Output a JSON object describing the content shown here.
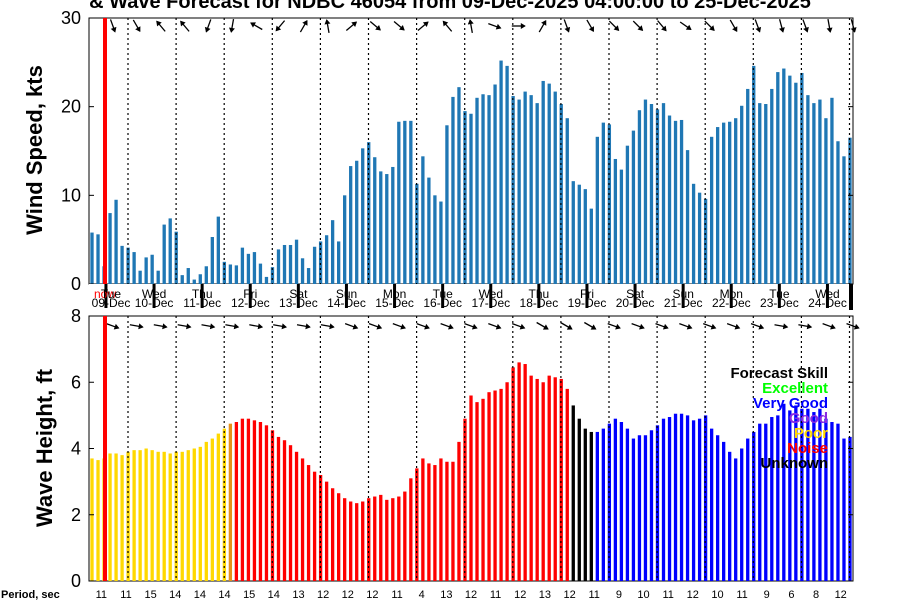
{
  "title": "& Wave Forecast for NDBC 46054 from 09-Dec-2025 04:00:00 to 25-Dec-2025",
  "colors": {
    "bar": "#1f77b4",
    "now": "#ff0000",
    "excellent": "#00ff00",
    "very_good": "#0000ff",
    "good": "#8a2be2",
    "poor": "#ffd800",
    "noise": "#ff0000",
    "unknown": "#000000",
    "transition": "#e69118"
  },
  "day_axis": [
    {
      "dow": "now",
      "date": "09-Dec"
    },
    {
      "dow": "Tue",
      "date": "09-Dec"
    },
    {
      "dow": "Wed",
      "date": "10-Dec"
    },
    {
      "dow": "Thu",
      "date": "11-Dec"
    },
    {
      "dow": "Fri",
      "date": "12-Dec"
    },
    {
      "dow": "Sat",
      "date": "13-Dec"
    },
    {
      "dow": "Sun",
      "date": "14-Dec"
    },
    {
      "dow": "Mon",
      "date": "15-Dec"
    },
    {
      "dow": "Tue",
      "date": "16-Dec"
    },
    {
      "dow": "Wed",
      "date": "17-Dec"
    },
    {
      "dow": "Thu",
      "date": "18-Dec"
    },
    {
      "dow": "Fri",
      "date": "19-Dec"
    },
    {
      "dow": "Sat",
      "date": "20-Dec"
    },
    {
      "dow": "Sun",
      "date": "21-Dec"
    },
    {
      "dow": "Mon",
      "date": "22-Dec"
    },
    {
      "dow": "Tue",
      "date": "23-Dec"
    },
    {
      "dow": "Wed",
      "date": "24-Dec"
    }
  ],
  "chart_data": [
    {
      "type": "bar",
      "ylabel": "Wind Speed, kts",
      "ylim": [
        0,
        30
      ],
      "yticks": [
        0,
        10,
        20,
        30
      ],
      "x_start": "09-Dec 04:00",
      "x_step_hours": 3,
      "values": [
        5.8,
        5.6,
        2.0,
        8.0,
        9.5,
        4.3,
        4.1,
        3.6,
        1.5,
        3.0,
        3.3,
        1.5,
        6.7,
        7.4,
        5.9,
        1.0,
        1.8,
        0.5,
        1.1,
        2.0,
        5.3,
        7.6,
        2.5,
        2.2,
        2.1,
        4.1,
        3.4,
        3.6,
        2.3,
        0.8,
        1.9,
        3.9,
        4.4,
        4.4,
        5.0,
        2.9,
        1.8,
        4.2,
        4.8,
        5.5,
        7.2,
        4.8,
        10.0,
        13.3,
        13.9,
        15.3,
        16.0,
        14.3,
        12.7,
        12.4,
        13.2,
        18.3,
        18.4,
        18.4,
        11.3,
        14.4,
        12.0,
        10.0,
        9.3,
        17.9,
        21.1,
        22.2,
        19.5,
        19.2,
        21.0,
        21.4,
        21.3,
        22.5,
        25.2,
        24.6,
        21.2,
        20.8,
        21.7,
        21.3,
        20.4,
        22.9,
        22.6,
        21.7,
        20.3,
        18.7,
        11.6,
        11.2,
        10.7,
        8.5,
        16.6,
        18.2,
        18.0,
        14.1,
        12.9,
        15.6,
        17.3,
        19.6,
        20.8,
        20.3,
        19.7,
        20.4,
        19.0,
        18.4,
        18.5,
        15.1,
        11.3,
        10.3,
        9.6,
        16.6,
        17.7,
        18.2,
        18.3,
        18.7,
        20.1,
        22.0,
        24.6,
        20.4,
        20.3,
        22.0,
        23.9,
        24.3,
        23.5,
        22.7,
        23.8,
        21.3,
        20.4,
        20.8,
        18.7,
        21.0,
        16.1,
        14.4,
        16.5
      ],
      "direction_row": "top"
    },
    {
      "type": "bar",
      "ylabel": "Wave Height, ft",
      "ylim": [
        0,
        8
      ],
      "yticks": [
        0,
        2,
        4,
        6,
        8
      ],
      "x_start": "09-Dec 04:00",
      "x_step_hours": 3,
      "values": [
        3.7,
        3.65,
        3.7,
        3.85,
        3.85,
        3.8,
        3.9,
        3.95,
        3.95,
        4.0,
        3.95,
        3.9,
        3.9,
        3.85,
        3.9,
        3.9,
        3.95,
        4.0,
        4.05,
        4.2,
        4.3,
        4.45,
        4.6,
        4.75,
        4.8,
        4.9,
        4.9,
        4.85,
        4.8,
        4.7,
        4.55,
        4.35,
        4.25,
        4.1,
        3.9,
        3.7,
        3.5,
        3.3,
        3.2,
        3.0,
        2.8,
        2.65,
        2.5,
        2.4,
        2.35,
        2.4,
        2.5,
        2.55,
        2.6,
        2.45,
        2.5,
        2.55,
        2.7,
        3.1,
        3.4,
        3.7,
        3.55,
        3.5,
        3.7,
        3.6,
        3.6,
        4.2,
        4.9,
        5.6,
        5.4,
        5.5,
        5.7,
        5.75,
        5.8,
        6.0,
        6.45,
        6.6,
        6.55,
        6.2,
        6.1,
        6.0,
        6.2,
        6.15,
        6.1,
        5.8,
        5.3,
        4.9,
        4.6,
        4.5,
        4.5,
        4.6,
        4.75,
        4.9,
        4.8,
        4.6,
        4.3,
        4.4,
        4.4,
        4.55,
        4.7,
        4.9,
        4.95,
        5.05,
        5.05,
        5.0,
        4.85,
        4.9,
        5.0,
        4.6,
        4.4,
        4.2,
        3.9,
        3.7,
        4.0,
        4.3,
        4.5,
        4.75,
        4.75,
        4.95,
        5.0,
        5.35,
        5.15,
        5.3,
        5.2,
        5.2,
        5.1,
        5.2,
        4.9,
        4.8,
        4.75,
        4.3,
        4.35
      ],
      "skill": [
        "poor",
        "poor",
        "poor",
        "poor",
        "poor",
        "poor",
        "poor",
        "poor",
        "poor",
        "poor",
        "poor",
        "poor",
        "poor",
        "poor",
        "poor",
        "poor",
        "poor",
        "poor",
        "poor",
        "poor",
        "poor",
        "poor",
        "poor",
        "transition",
        "noise",
        "noise",
        "noise",
        "noise",
        "noise",
        "noise",
        "noise",
        "noise",
        "noise",
        "noise",
        "noise",
        "noise",
        "noise",
        "noise",
        "noise",
        "noise",
        "noise",
        "noise",
        "noise",
        "noise",
        "noise",
        "noise",
        "noise",
        "noise",
        "noise",
        "noise",
        "noise",
        "noise",
        "noise",
        "noise",
        "noise",
        "noise",
        "noise",
        "noise",
        "noise",
        "noise",
        "noise",
        "noise",
        "noise",
        "noise",
        "noise",
        "noise",
        "noise",
        "noise",
        "noise",
        "noise",
        "noise",
        "noise",
        "noise",
        "noise",
        "noise",
        "noise",
        "noise",
        "noise",
        "noise",
        "noise",
        "unknown",
        "unknown",
        "unknown",
        "unknown",
        "very_good",
        "very_good",
        "very_good",
        "very_good",
        "very_good",
        "very_good",
        "very_good",
        "very_good",
        "very_good",
        "very_good",
        "very_good",
        "very_good",
        "very_good",
        "very_good",
        "very_good",
        "very_good",
        "very_good",
        "very_good",
        "very_good",
        "very_good",
        "very_good",
        "very_good",
        "very_good",
        "very_good",
        "very_good",
        "very_good",
        "very_good",
        "very_good",
        "very_good",
        "very_good",
        "very_good",
        "very_good",
        "very_good",
        "very_good",
        "very_good",
        "very_good",
        "very_good",
        "very_good",
        "very_good",
        "very_good",
        "very_good",
        "very_good",
        "very_good"
      ],
      "direction_row": "top"
    }
  ],
  "legend": {
    "title": "Forecast Skill",
    "items": [
      {
        "label": "Excellent",
        "color_key": "excellent"
      },
      {
        "label": "Very Good",
        "color_key": "very_good"
      },
      {
        "label": "Good",
        "color_key": "good"
      },
      {
        "label": "Poor",
        "color_key": "poor"
      },
      {
        "label": "Noise",
        "color_key": "noise"
      },
      {
        "label": "Unknown",
        "color_key": "unknown"
      }
    ]
  },
  "period": {
    "label": "Period, sec",
    "values": [
      "11",
      "11",
      "15",
      "14",
      "14",
      "14",
      "15",
      "14",
      "13",
      "12",
      "12",
      "12",
      "11",
      "4",
      "13",
      "12",
      "11",
      "12",
      "13",
      "12",
      "11",
      "9",
      "10",
      "11",
      "12",
      "10",
      "11",
      "9",
      "6",
      "8",
      "12"
    ]
  }
}
